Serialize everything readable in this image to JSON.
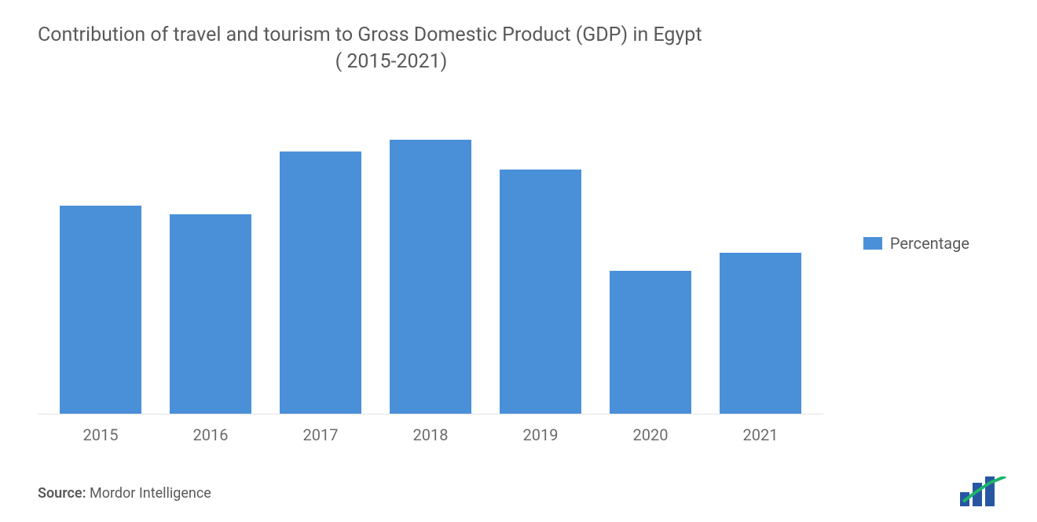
{
  "chart": {
    "type": "bar",
    "title_line1": "Contribution of travel and tourism to Gross Domestic Product (GDP) in Egypt",
    "title_line2": "( 2015-2021)",
    "title_fontsize": 25,
    "title_color": "#59595b",
    "categories": [
      "2015",
      "2016",
      "2017",
      "2018",
      "2019",
      "2020",
      "2021"
    ],
    "values": [
      70,
      67,
      88,
      92,
      82,
      48,
      54
    ],
    "bar_color": "#4a90d9",
    "background_color": "#ffffff",
    "axis_line_color": "#e3e3e3",
    "axis_label_fontsize": 20,
    "axis_label_color": "#6b6b6d",
    "ylim": [
      0,
      100
    ],
    "bar_width_ratio": 0.72,
    "legend": {
      "label": "Percentage",
      "swatch_color": "#4a90d9",
      "label_fontsize": 20,
      "label_color": "#59595b",
      "position": "right-middle"
    }
  },
  "footer": {
    "source_label": "Source:",
    "source_text": "  Mordor Intelligence",
    "fontsize": 18,
    "color": "#59595b"
  },
  "logo": {
    "name": "mordor-intelligence-logo",
    "bar_color": "#2856a3",
    "line_color": "#1fb36a"
  }
}
